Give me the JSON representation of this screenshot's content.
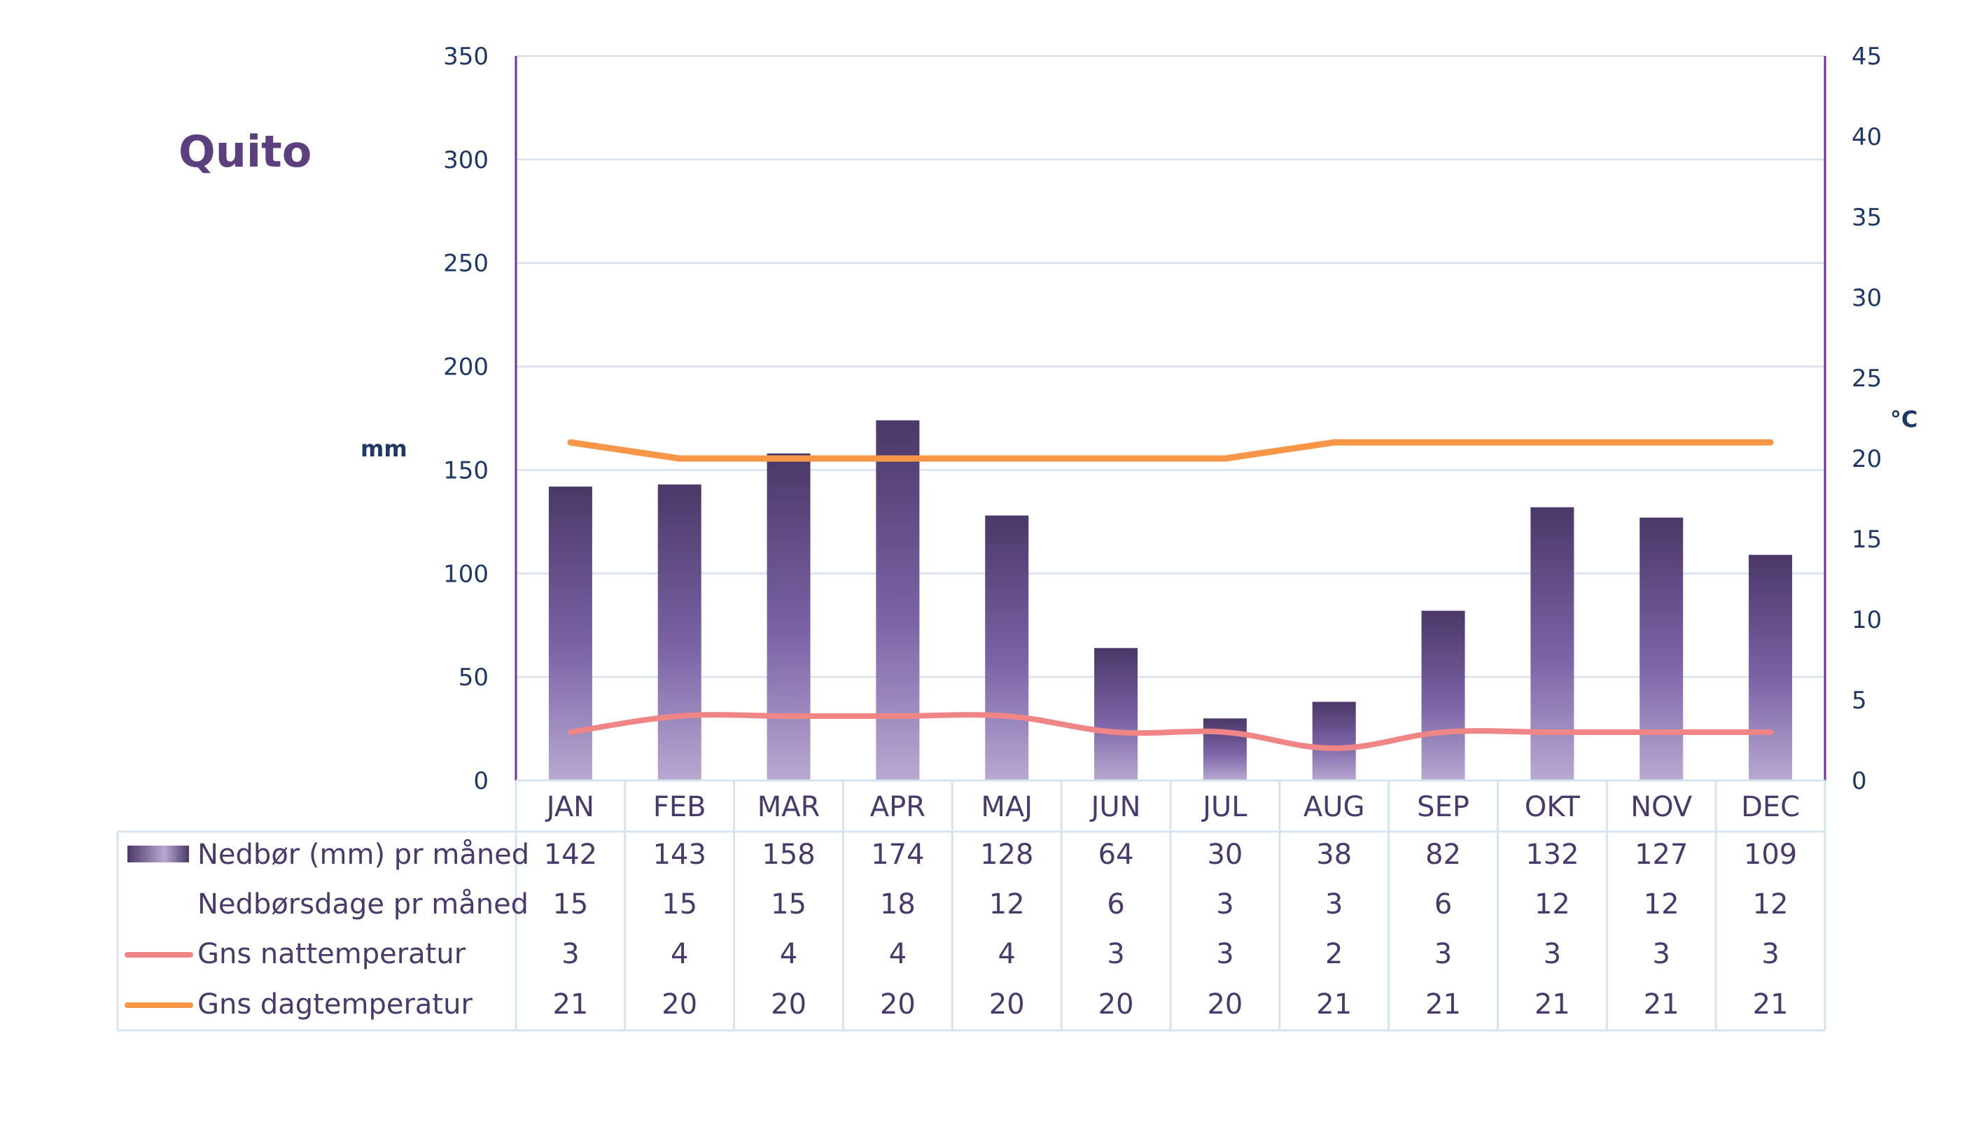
{
  "colors": {
    "bar_dark": "#4a3868",
    "bar_mid": "#7b63a6",
    "bar_light": "#b8a9d2",
    "night_line": "#ef8585",
    "day_line": "#f79646",
    "axis": "#7030a0",
    "grid": "#d6e1ee",
    "table_border": "#d6e4f0",
    "title": "#5b3f7e",
    "tick_text": "#1f3864"
  },
  "chart_data": {
    "type": "bar",
    "title": "Quito",
    "ylabel": "mm",
    "y2label": "°C",
    "ylim": [
      0,
      350
    ],
    "y2lim": [
      0,
      45
    ],
    "yticks": [
      "0",
      "50",
      "100",
      "150",
      "200",
      "250",
      "300",
      "350"
    ],
    "y2ticks": [
      "0",
      "5",
      "10",
      "15",
      "20",
      "25",
      "30",
      "35",
      "40",
      "45"
    ],
    "grid": true,
    "legend": "data-table-below",
    "categories": [
      "JAN",
      "FEB",
      "MAR",
      "APR",
      "MAJ",
      "JUN",
      "JUL",
      "AUG",
      "SEP",
      "OKT",
      "NOV",
      "DEC"
    ],
    "series": [
      {
        "name": "Nedbør (mm) pr måned",
        "kind": "bar",
        "axis": "left",
        "values": [
          142,
          143,
          158,
          174,
          128,
          64,
          30,
          38,
          82,
          132,
          127,
          109
        ],
        "labels": [
          "142",
          "143",
          "158",
          "174",
          "128",
          "64",
          "30",
          "38",
          "82",
          "132",
          "127",
          "109"
        ]
      },
      {
        "name": "Nedbørsdage pr måned",
        "kind": "table-only",
        "values": [
          15,
          15,
          15,
          18,
          12,
          6,
          3,
          3,
          6,
          12,
          12,
          12
        ],
        "labels": [
          "15",
          "15",
          "15",
          "18",
          "12",
          "6",
          "3",
          "3",
          "6",
          "12",
          "12",
          "12"
        ]
      },
      {
        "name": "Gns nattemperatur",
        "kind": "line",
        "axis": "right",
        "color": "#ef8585",
        "values": [
          3,
          4,
          4,
          4,
          4,
          3,
          3,
          2,
          3,
          3,
          3,
          3
        ],
        "labels": [
          "3",
          "4",
          "4",
          "4",
          "4",
          "3",
          "3",
          "2",
          "3",
          "3",
          "3",
          "3"
        ]
      },
      {
        "name": "Gns dagtemperatur",
        "kind": "line",
        "axis": "right",
        "color": "#f79646",
        "values": [
          21,
          20,
          20,
          20,
          20,
          20,
          20,
          21,
          21,
          21,
          21,
          21
        ],
        "labels": [
          "21",
          "20",
          "20",
          "20",
          "20",
          "20",
          "20",
          "21",
          "21",
          "21",
          "21",
          "21"
        ]
      }
    ]
  }
}
